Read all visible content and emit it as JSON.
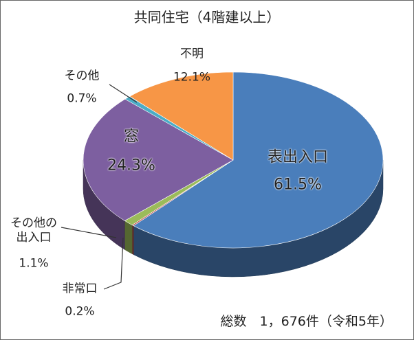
{
  "chart_data": {
    "type": "pie3d",
    "title": "共同住宅（4階建以上）",
    "footer": "総数　1，676件（令和5年）",
    "categories": [
      "表出入口",
      "非常口",
      "その他の\n出入口",
      "窓",
      "その他",
      "不明"
    ],
    "values": [
      61.5,
      0.2,
      1.1,
      24.3,
      0.7,
      12.1
    ],
    "value_labels": [
      "61.5%",
      "0.2%",
      "1.1%",
      "24.3%",
      "0.7%",
      "12.1%"
    ],
    "colors": [
      "#4a7ebb",
      "#c0504d",
      "#9bbb59",
      "#7d5fa0",
      "#4bacc6",
      "#f79646"
    ]
  }
}
